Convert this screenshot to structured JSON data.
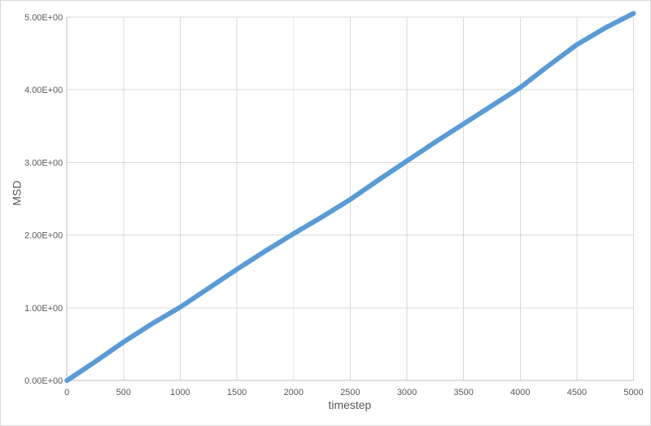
{
  "chart": {
    "colors": {
      "series": "#5B9BD5",
      "gridline": "#D9D9D9",
      "axis_line": "#BFBFBF",
      "tick_text": "#595959",
      "frame": "#D9D9D9",
      "background": "#FFFFFF"
    },
    "x_tick_labels": [
      "0",
      "500",
      "1000",
      "1500",
      "2000",
      "2500",
      "3000",
      "3500",
      "4000",
      "4500",
      "5000"
    ],
    "y_tick_labels": [
      "0.00E+00",
      "1.00E+00",
      "2.00E+00",
      "3.00E+00",
      "4.00E+00",
      "5.00E+00"
    ]
  },
  "chart_data": {
    "type": "line",
    "title": "",
    "xlabel": "timestep",
    "ylabel": "MSD",
    "xlim": [
      0,
      5000
    ],
    "ylim": [
      0,
      5
    ],
    "grid": true,
    "legend": false,
    "x_ticks": [
      0,
      500,
      1000,
      1500,
      2000,
      2500,
      3000,
      3500,
      4000,
      4500,
      5000
    ],
    "y_ticks": [
      0,
      1,
      2,
      3,
      4,
      5
    ],
    "x": [
      0,
      250,
      500,
      750,
      1000,
      1250,
      1500,
      1750,
      2000,
      2250,
      2500,
      2750,
      3000,
      3250,
      3500,
      3750,
      4000,
      4250,
      4500,
      4750,
      5000
    ],
    "y": [
      0.0,
      0.26,
      0.53,
      0.78,
      1.01,
      1.27,
      1.53,
      1.78,
      2.02,
      2.25,
      2.49,
      2.76,
      3.02,
      3.28,
      3.53,
      3.78,
      4.03,
      4.33,
      4.62,
      4.85,
      5.05
    ]
  }
}
